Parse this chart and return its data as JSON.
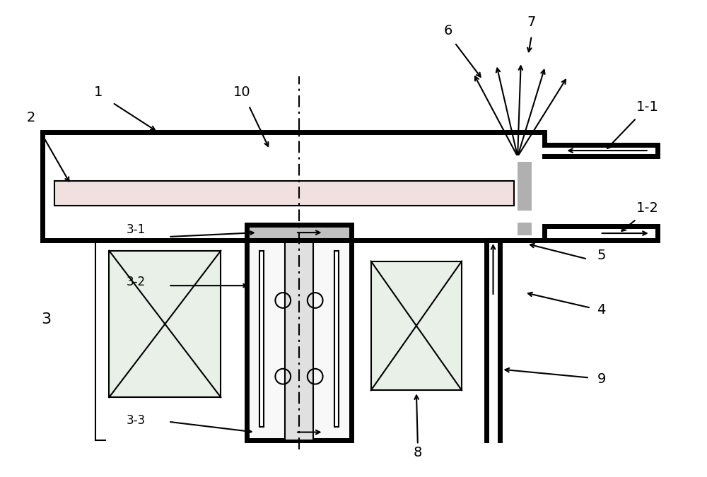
{
  "bg_color": "#ffffff",
  "line_color": "#000000",
  "thick_lw": 5.0,
  "thin_lw": 1.5,
  "dash_lw": 1.5,
  "pink_fill": "#f0e0e0",
  "light_gray": "#e0e0e0",
  "gray_fill": "#c0c0c0",
  "green_fill": "#e8f0e8",
  "spindle_fill": "#f0f0f0",
  "target_gray": "#b0b0b0"
}
